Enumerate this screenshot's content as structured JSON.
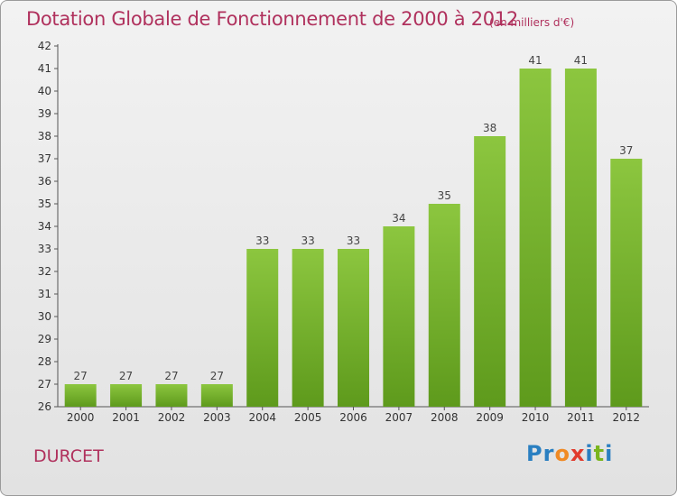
{
  "chart_data": {
    "type": "bar",
    "title": "Dotation Globale de Fonctionnement de 2000 à 2012",
    "subtitle": "(en milliers d'€)",
    "categories": [
      "2000",
      "2001",
      "2002",
      "2003",
      "2004",
      "2005",
      "2006",
      "2007",
      "2008",
      "2009",
      "2010",
      "2011",
      "2012"
    ],
    "values": [
      27,
      27,
      27,
      27,
      33,
      33,
      33,
      34,
      35,
      38,
      41,
      41,
      37
    ],
    "ylim": [
      26,
      42
    ],
    "yticks": [
      26,
      27,
      28,
      29,
      30,
      31,
      32,
      33,
      34,
      35,
      36,
      37,
      38,
      39,
      40,
      41,
      42
    ],
    "xlabel": "",
    "ylabel": "",
    "grid": false,
    "bar_color": "#8cc63f",
    "bar_color_dark": "#5e9a1c"
  },
  "commune": "DURCET",
  "logo": {
    "letters": [
      {
        "char": "P",
        "color": "#2a7fc1"
      },
      {
        "char": "r",
        "color": "#2a7fc1"
      },
      {
        "char": "o",
        "color": "#f08a24"
      },
      {
        "char": "x",
        "color": "#e13b2d"
      },
      {
        "char": "i",
        "color": "#2a7fc1"
      },
      {
        "char": "t",
        "color": "#7ab51d"
      },
      {
        "char": "i",
        "color": "#2a7fc1"
      }
    ]
  }
}
